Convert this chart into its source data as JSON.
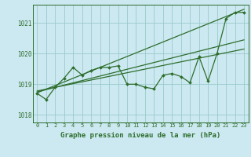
{
  "title": "Graphe pression niveau de la mer (hPa)",
  "bg_color": "#cce8f0",
  "grid_color": "#99cccc",
  "line_color": "#2d6e2d",
  "text_color": "#2d6e2d",
  "xlim": [
    -0.5,
    23.5
  ],
  "ylim": [
    1017.75,
    1021.6
  ],
  "yticks": [
    1018,
    1019,
    1020,
    1021
  ],
  "xticks": [
    0,
    1,
    2,
    3,
    4,
    5,
    6,
    7,
    8,
    9,
    10,
    11,
    12,
    13,
    14,
    15,
    16,
    17,
    18,
    19,
    20,
    21,
    22,
    23
  ],
  "measured_x": [
    0,
    1,
    2,
    3,
    4,
    5,
    6,
    7,
    8,
    9,
    10,
    11,
    12,
    13,
    14,
    15,
    16,
    17,
    18,
    19,
    20,
    21,
    22,
    23
  ],
  "measured_y": [
    1018.7,
    1018.5,
    1018.9,
    1019.2,
    1019.55,
    1019.3,
    1019.45,
    1019.55,
    1019.55,
    1019.6,
    1019.0,
    1019.0,
    1018.9,
    1018.85,
    1019.3,
    1019.35,
    1019.25,
    1019.05,
    1019.9,
    1019.1,
    1020.0,
    1021.15,
    1021.35,
    1021.35
  ],
  "trend1_x": [
    0,
    23
  ],
  "trend1_y": [
    1018.72,
    1021.45
  ],
  "trend2_x": [
    0,
    23
  ],
  "trend2_y": [
    1018.75,
    1020.45
  ],
  "trend3_x": [
    0,
    23
  ],
  "trend3_y": [
    1018.78,
    1020.15
  ]
}
